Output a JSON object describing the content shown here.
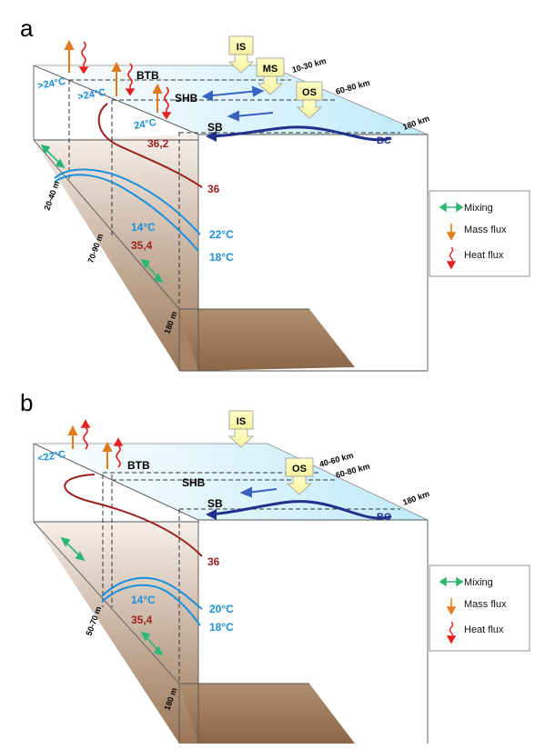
{
  "panels": [
    {
      "letter": "a",
      "zones": [
        "IS",
        "MS",
        "OS"
      ],
      "fronts": [
        "BTB",
        "SHB",
        "SB"
      ],
      "front_distances": [
        "10-30 km",
        "60-80 km",
        "180 km"
      ],
      "current": "BC",
      "surface_temps": [
        ">24°C",
        ">24°C",
        "24°C"
      ],
      "salinity_surface": [
        "36,2",
        "36"
      ],
      "isotherms": [
        "22°C",
        "18°C"
      ],
      "bottom_temp": "14°C",
      "bottom_salinity": "35,4",
      "depths": [
        "20-40 m",
        "70-90 m",
        "180 m"
      ]
    },
    {
      "letter": "b",
      "zones": [
        "IS",
        "OS"
      ],
      "fronts": [
        "BTB",
        "SHB",
        "SB"
      ],
      "front_distances": [
        "40-60 km",
        "60-80 km",
        "180 km"
      ],
      "current": "BC",
      "surface_temps": [
        "<22°C"
      ],
      "salinity_surface": [
        "36"
      ],
      "isotherms": [
        "20°C",
        "18°C"
      ],
      "bottom_temp": "14°C",
      "bottom_salinity": "35,4",
      "depths": [
        "50-70 m",
        "180 m"
      ]
    }
  ],
  "legend": {
    "mixing": "Mixing",
    "mass_flux": "Mass flux",
    "heat_flux": "Heat flux"
  },
  "colors": {
    "sea_surface": "#c5eefb",
    "sediment_top": "#f4ece6",
    "sediment_bottom": "#9c7a5c",
    "mixing": "#2bb673",
    "mass_flux": "#e07b1e",
    "heat_flux": "#e52222",
    "isotherm": "#1a8fdc",
    "isohaline": "#9a1f1f",
    "current": "#1f2f8a",
    "zone_box": "#ffffb0"
  }
}
